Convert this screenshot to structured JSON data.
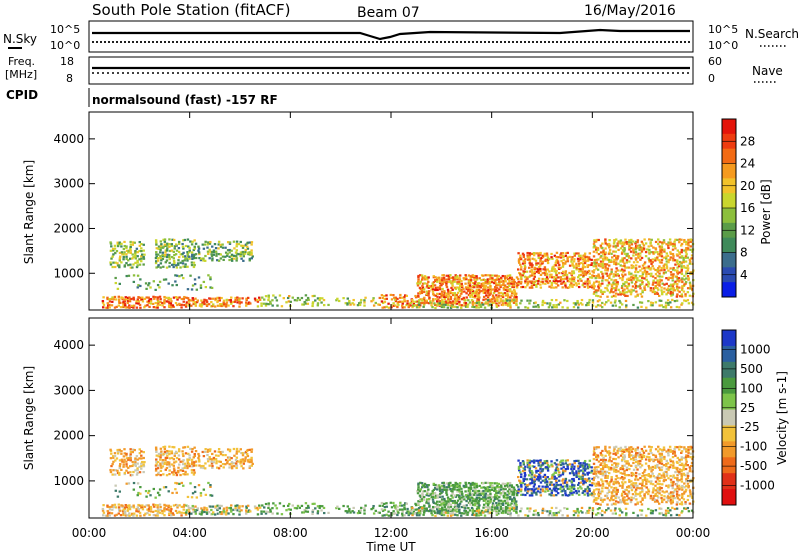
{
  "header": {
    "station": "South Pole Station (fitACF)",
    "beam": "Beam 07",
    "date": "16/May/2016"
  },
  "panels": {
    "nsky_label": "N.Sky",
    "nsearch_label": "N.Search",
    "sky_tick_top": "10^5",
    "sky_tick_bottom": "10^0",
    "freq_label_1": "Freq.",
    "freq_label_2": "[MHz]",
    "freq_tick_top": "18",
    "freq_tick_bottom": "8",
    "nave_label": "Nave",
    "nave_tick_top": "60",
    "nave_tick_bottom": "0",
    "cpid_label": "CPID",
    "cpid_text": "normalsound (fast) -157 RF"
  },
  "chart_data": [
    {
      "type": "heatmap",
      "title": "",
      "xlabel": "Time UT",
      "ylabel": "Slant Range [km]",
      "xticks": [
        "00:00",
        "04:00",
        "08:00",
        "12:00",
        "16:00",
        "20:00",
        "00:00"
      ],
      "yticks": [
        "1000",
        "2000",
        "3000",
        "4000"
      ],
      "ylim": [
        180,
        4600
      ],
      "colorbar": {
        "label": "Power [dB]",
        "ticks": [
          "4",
          "8",
          "12",
          "16",
          "20",
          "24",
          "28"
        ],
        "range": [
          0,
          32
        ],
        "colors": [
          "#0a1ee6",
          "#2a4ab0",
          "#3b6d8c",
          "#3f8a5a",
          "#5a9c48",
          "#8cbf3c",
          "#c9d62d",
          "#f2c22a",
          "#f59a1e",
          "#f36b14",
          "#ee3c10",
          "#e4140a"
        ]
      }
    },
    {
      "type": "heatmap",
      "title": "",
      "xlabel": "Time UT",
      "ylabel": "Slant Range [km]",
      "xticks": [
        "00:00",
        "04:00",
        "08:00",
        "12:00",
        "16:00",
        "20:00",
        "00:00"
      ],
      "yticks": [
        "1000",
        "2000",
        "3000",
        "4000"
      ],
      "ylim": [
        180,
        4600
      ],
      "colorbar": {
        "label": "Velocity [m s-1]",
        "ticks": [
          "1000",
          "500",
          "100",
          "25",
          "-25",
          "-100",
          "-500",
          "-1000"
        ],
        "colors": [
          "#1d38c8",
          "#2a5fa0",
          "#3d7a6a",
          "#4a9a3e",
          "#7dc44a",
          "#c9c9b4",
          "#f2c23a",
          "#f29a2a",
          "#ee6a1a",
          "#e03018",
          "#e01010"
        ]
      }
    }
  ]
}
